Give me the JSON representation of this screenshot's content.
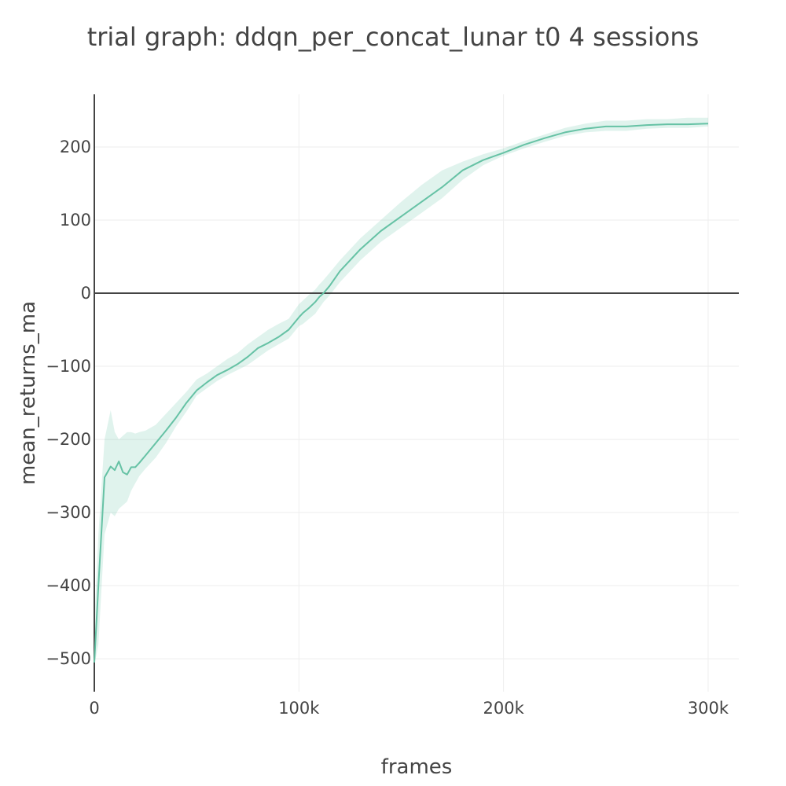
{
  "chart_data": {
    "type": "line",
    "title": "trial graph: ddqn_per_concat_lunar t0 4 sessions",
    "xlabel": "frames",
    "ylabel": "mean_returns_ma",
    "xlim": [
      0,
      315000
    ],
    "ylim": [
      -545,
      272
    ],
    "grid": true,
    "legend": "none",
    "x_ticks": [
      0,
      100000,
      200000,
      300000
    ],
    "x_tick_labels": [
      "0",
      "100k",
      "200k",
      "300k"
    ],
    "y_ticks": [
      -500,
      -400,
      -300,
      -200,
      -100,
      0,
      100,
      200
    ],
    "y_tick_labels": [
      "−500",
      "−400",
      "−300",
      "−200",
      "−100",
      "0",
      "100",
      "200"
    ],
    "colors": {
      "line": "#66c2a5",
      "band": "rgba(102,194,165,0.2)",
      "grid": "#eeeeee",
      "zero_line": "#444444"
    },
    "series": [
      {
        "x": [
          0,
          2000,
          5000,
          8000,
          10000,
          12000,
          14000,
          16000,
          18000,
          20000,
          22000,
          25000,
          30000,
          35000,
          40000,
          45000,
          50000,
          55000,
          60000,
          65000,
          70000,
          75000,
          80000,
          85000,
          90000,
          95000,
          100000,
          102000,
          105000,
          108000,
          110000,
          112000,
          115000,
          120000,
          130000,
          140000,
          150000,
          160000,
          170000,
          180000,
          190000,
          200000,
          210000,
          220000,
          230000,
          240000,
          250000,
          260000,
          270000,
          280000,
          290000,
          300000
        ],
        "y": [
          -505,
          -400,
          -252,
          -237,
          -242,
          -230,
          -245,
          -248,
          -238,
          -238,
          -232,
          -222,
          -205,
          -188,
          -170,
          -150,
          -133,
          -122,
          -112,
          -105,
          -97,
          -87,
          -75,
          -68,
          -60,
          -50,
          -33,
          -27,
          -20,
          -12,
          -5,
          0,
          10,
          30,
          60,
          85,
          105,
          125,
          145,
          168,
          182,
          192,
          203,
          212,
          220,
          225,
          228,
          228,
          230,
          231,
          231,
          232
        ],
        "lower": [
          -510,
          -480,
          -330,
          -300,
          -305,
          -295,
          -290,
          -285,
          -270,
          -260,
          -250,
          -240,
          -225,
          -205,
          -182,
          -162,
          -140,
          -130,
          -120,
          -112,
          -105,
          -98,
          -88,
          -78,
          -70,
          -62,
          -45,
          -42,
          -35,
          -28,
          -20,
          -12,
          -3,
          15,
          45,
          70,
          90,
          110,
          130,
          155,
          175,
          188,
          198,
          207,
          215,
          220,
          222,
          222,
          225,
          226,
          226,
          228
        ],
        "upper": [
          -450,
          -330,
          -200,
          -160,
          -190,
          -200,
          -195,
          -190,
          -190,
          -192,
          -190,
          -188,
          -180,
          -165,
          -150,
          -135,
          -118,
          -110,
          -100,
          -90,
          -82,
          -70,
          -60,
          -50,
          -42,
          -35,
          -15,
          -10,
          -2,
          5,
          12,
          18,
          28,
          45,
          75,
          100,
          125,
          148,
          168,
          180,
          190,
          198,
          208,
          217,
          226,
          232,
          236,
          236,
          238,
          238,
          240,
          240
        ]
      }
    ]
  }
}
